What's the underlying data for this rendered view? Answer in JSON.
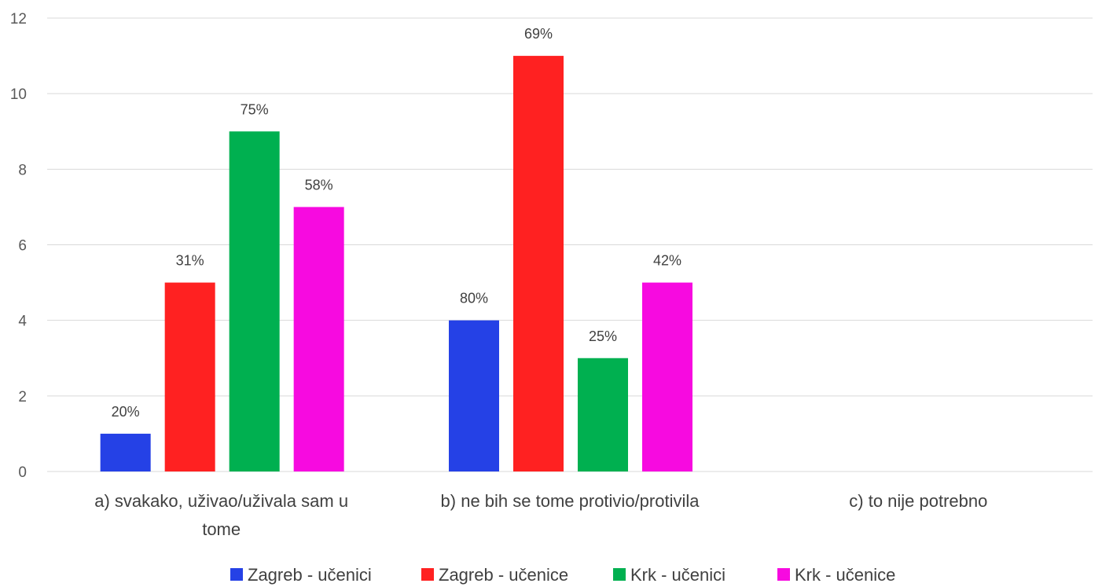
{
  "chart_data": {
    "type": "bar",
    "categories": [
      [
        "a) svakako, uživao/uživala sam u",
        "tome"
      ],
      [
        "b) ne bih se tome protivio/protivila"
      ],
      [
        "c) to nije potrebno"
      ]
    ],
    "series": [
      {
        "name": "Zagreb - učenici",
        "color": "#2541e6",
        "values": [
          1,
          4,
          0
        ],
        "labels": [
          "20%",
          "80%",
          ""
        ]
      },
      {
        "name": "Zagreb - učenice",
        "color": "#ff2121",
        "values": [
          5,
          11,
          0
        ],
        "labels": [
          "31%",
          "69%",
          ""
        ]
      },
      {
        "name": "Krk - učenici",
        "color": "#00b050",
        "values": [
          9,
          3,
          0
        ],
        "labels": [
          "75%",
          "25%",
          ""
        ]
      },
      {
        "name": "Krk - učenice",
        "color": "#f70ae0",
        "values": [
          7,
          5,
          0
        ],
        "labels": [
          "58%",
          "42%",
          ""
        ]
      }
    ],
    "yticks": [
      "0",
      "2",
      "4",
      "6",
      "8",
      "10",
      "12"
    ],
    "ylim": [
      0,
      12
    ],
    "grid": true,
    "legend": "bottom"
  }
}
